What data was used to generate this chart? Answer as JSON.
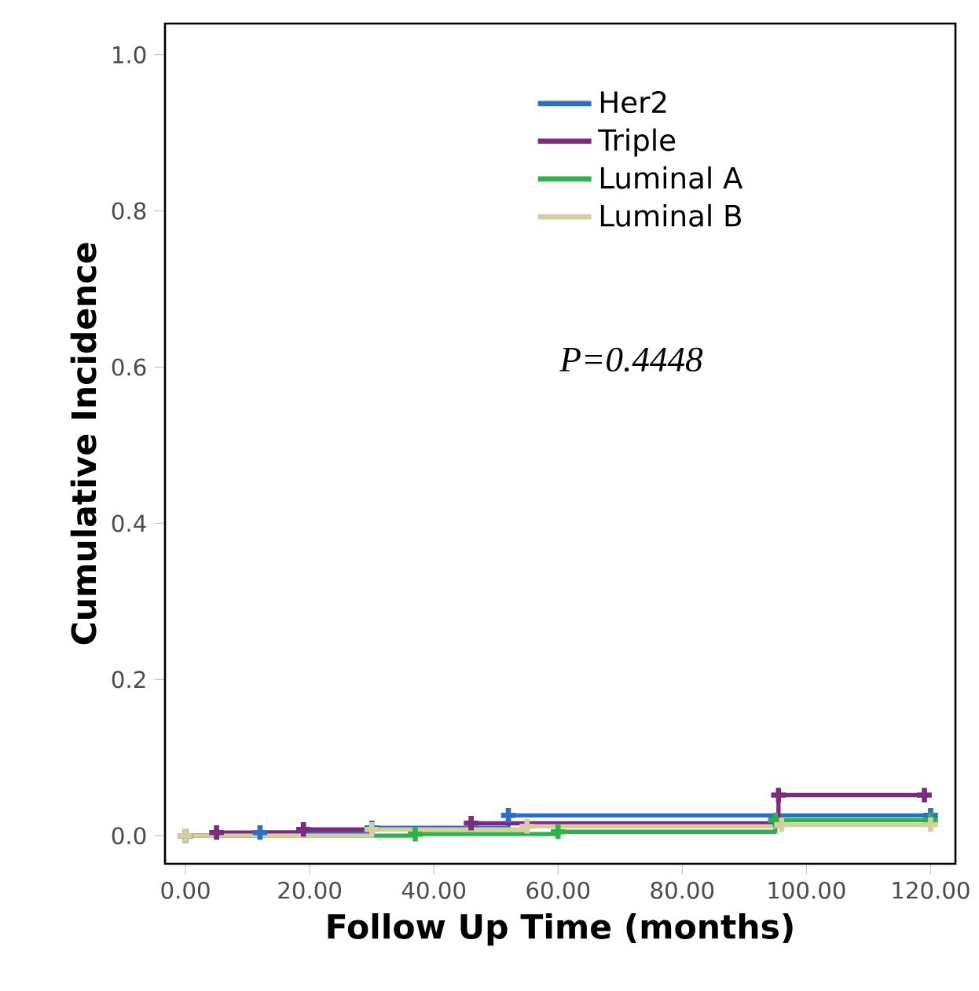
{
  "chart_data": {
    "type": "step",
    "xlabel": "Follow Up Time (months)",
    "ylabel": "Cumulative Incidence",
    "legend": "top right",
    "marker": "cross",
    "xlim": [
      -3.3,
      124
    ],
    "ylim": [
      -0.036,
      1.04
    ],
    "xticks": [
      {
        "value": 0,
        "label": "0.00"
      },
      {
        "value": 20,
        "label": "20.00"
      },
      {
        "value": 40,
        "label": "40.00"
      },
      {
        "value": 60,
        "label": "60.00"
      },
      {
        "value": 80,
        "label": "80.00"
      },
      {
        "value": 100,
        "label": "100.00"
      },
      {
        "value": 120,
        "label": "120.00"
      }
    ],
    "yticks": [
      {
        "value": 0,
        "label": "0.0"
      },
      {
        "value": 0.2,
        "label": "0.2"
      },
      {
        "value": 0.4,
        "label": "0.4"
      },
      {
        "value": 0.6,
        "label": "0.6"
      },
      {
        "value": 0.8,
        "label": "0.8"
      },
      {
        "value": 1,
        "label": "1.0"
      }
    ],
    "annotations": [
      "P=0.4448"
    ],
    "series": [
      {
        "name": "Her2",
        "color": "#2e6fc0",
        "x": [
          0,
          12,
          30,
          52,
          120
        ],
        "values": [
          0,
          0.004,
          0.01,
          0.026,
          0.026
        ]
      },
      {
        "name": "Triple",
        "color": "#7b2a7f",
        "x": [
          0,
          5,
          19,
          46,
          95.5,
          119
        ],
        "values": [
          0,
          0.004,
          0.008,
          0.016,
          0.052,
          0.052
        ]
      },
      {
        "name": "Luminal A",
        "color": "#2db34a",
        "x": [
          0,
          37,
          60,
          95,
          120
        ],
        "values": [
          0,
          0.002,
          0.005,
          0.02,
          0.02
        ]
      },
      {
        "name": "Luminal B",
        "color": "#d6cda0",
        "x": [
          0,
          30,
          55,
          96,
          120
        ],
        "values": [
          0,
          0.008,
          0.012,
          0.014,
          0.014
        ]
      }
    ]
  }
}
